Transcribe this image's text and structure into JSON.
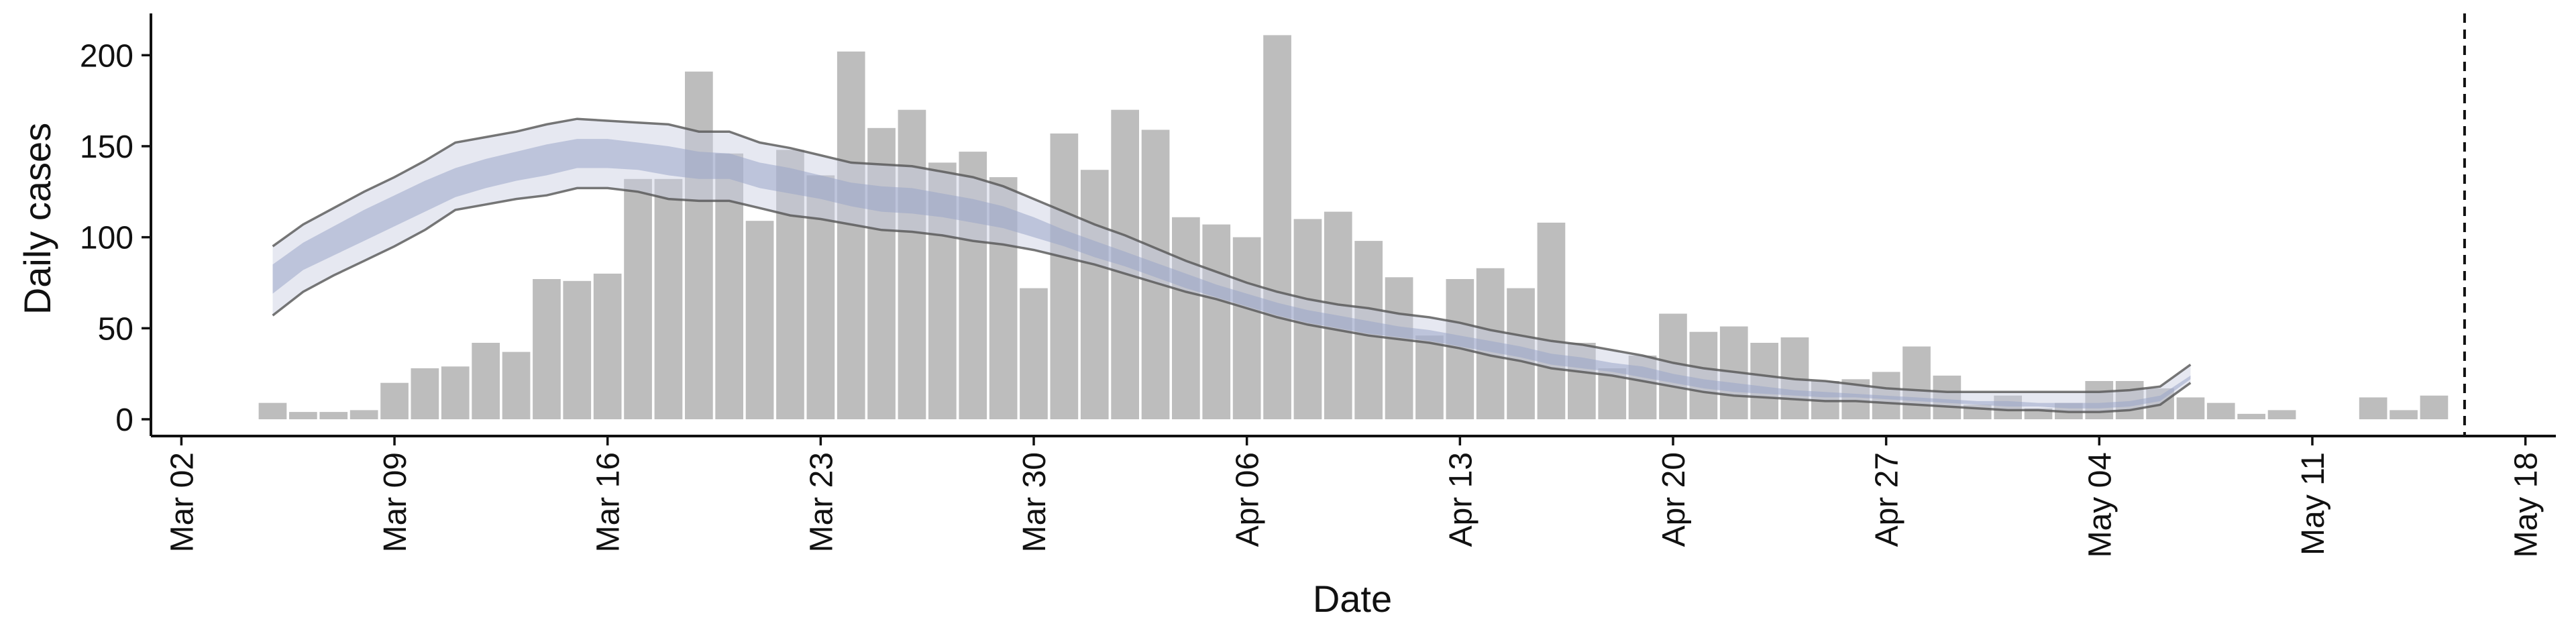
{
  "chart_data": {
    "type": "bar",
    "xlabel": "Date",
    "ylabel": "Daily cases",
    "ylim": [
      0,
      220
    ],
    "yticks": [
      0,
      50,
      100,
      150,
      200
    ],
    "xlim": [
      "2020-03-01",
      "2020-05-19"
    ],
    "xticks": [
      {
        "date": "2020-03-02",
        "label": "Mar 02"
      },
      {
        "date": "2020-03-09",
        "label": "Mar 09"
      },
      {
        "date": "2020-03-16",
        "label": "Mar 16"
      },
      {
        "date": "2020-03-23",
        "label": "Mar 23"
      },
      {
        "date": "2020-03-30",
        "label": "Mar 30"
      },
      {
        "date": "2020-04-06",
        "label": "Apr 06"
      },
      {
        "date": "2020-04-13",
        "label": "Apr 13"
      },
      {
        "date": "2020-04-20",
        "label": "Apr 20"
      },
      {
        "date": "2020-04-27",
        "label": "Apr 27"
      },
      {
        "date": "2020-05-04",
        "label": "May 04"
      },
      {
        "date": "2020-05-11",
        "label": "May 11"
      },
      {
        "date": "2020-05-18",
        "label": "May 18"
      }
    ],
    "vline_date": "2020-05-16",
    "bar_dates": [
      "2020-03-05",
      "2020-03-06",
      "2020-03-07",
      "2020-03-08",
      "2020-03-09",
      "2020-03-10",
      "2020-03-11",
      "2020-03-12",
      "2020-03-13",
      "2020-03-14",
      "2020-03-15",
      "2020-03-16",
      "2020-03-17",
      "2020-03-18",
      "2020-03-19",
      "2020-03-20",
      "2020-03-21",
      "2020-03-22",
      "2020-03-23",
      "2020-03-24",
      "2020-03-25",
      "2020-03-26",
      "2020-03-27",
      "2020-03-28",
      "2020-03-29",
      "2020-03-30",
      "2020-03-31",
      "2020-04-01",
      "2020-04-02",
      "2020-04-03",
      "2020-04-04",
      "2020-04-05",
      "2020-04-06",
      "2020-04-07",
      "2020-04-08",
      "2020-04-09",
      "2020-04-10",
      "2020-04-11",
      "2020-04-12",
      "2020-04-13",
      "2020-04-14",
      "2020-04-15",
      "2020-04-16",
      "2020-04-17",
      "2020-04-18",
      "2020-04-19",
      "2020-04-20",
      "2020-04-21",
      "2020-04-22",
      "2020-04-23",
      "2020-04-24",
      "2020-04-25",
      "2020-04-26",
      "2020-04-27",
      "2020-04-28",
      "2020-04-29",
      "2020-04-30",
      "2020-05-01",
      "2020-05-02",
      "2020-05-03",
      "2020-05-04",
      "2020-05-05",
      "2020-05-06",
      "2020-05-07",
      "2020-05-08",
      "2020-05-09",
      "2020-05-10",
      "2020-05-11",
      "2020-05-12",
      "2020-05-13",
      "2020-05-14",
      "2020-05-15"
    ],
    "bar_values": [
      9,
      4,
      4,
      5,
      20,
      28,
      29,
      42,
      37,
      77,
      76,
      80,
      132,
      132,
      191,
      146,
      109,
      148,
      134,
      202,
      160,
      170,
      141,
      147,
      133,
      72,
      157,
      137,
      170,
      159,
      111,
      107,
      100,
      211,
      110,
      114,
      98,
      78,
      46,
      77,
      83,
      72,
      108,
      42,
      28,
      35,
      58,
      48,
      51,
      42,
      45,
      21,
      22,
      26,
      40,
      24,
      8,
      13,
      6,
      9,
      21,
      21,
      17,
      12,
      9,
      3,
      5,
      0,
      0,
      12,
      5,
      13
    ],
    "band_dates": [
      "2020-03-05",
      "2020-03-06",
      "2020-03-07",
      "2020-03-08",
      "2020-03-09",
      "2020-03-10",
      "2020-03-11",
      "2020-03-12",
      "2020-03-13",
      "2020-03-14",
      "2020-03-15",
      "2020-03-16",
      "2020-03-17",
      "2020-03-18",
      "2020-03-19",
      "2020-03-20",
      "2020-03-21",
      "2020-03-22",
      "2020-03-23",
      "2020-03-24",
      "2020-03-25",
      "2020-03-26",
      "2020-03-27",
      "2020-03-28",
      "2020-03-29",
      "2020-03-30",
      "2020-03-31",
      "2020-04-01",
      "2020-04-02",
      "2020-04-03",
      "2020-04-04",
      "2020-04-05",
      "2020-04-06",
      "2020-04-07",
      "2020-04-08",
      "2020-04-09",
      "2020-04-10",
      "2020-04-11",
      "2020-04-12",
      "2020-04-13",
      "2020-04-14",
      "2020-04-15",
      "2020-04-16",
      "2020-04-17",
      "2020-04-18",
      "2020-04-19",
      "2020-04-20",
      "2020-04-21",
      "2020-04-22",
      "2020-04-23",
      "2020-04-24",
      "2020-04-25",
      "2020-04-26",
      "2020-04-27",
      "2020-04-28",
      "2020-04-29",
      "2020-04-30",
      "2020-05-01",
      "2020-05-02",
      "2020-05-03",
      "2020-05-04",
      "2020-05-05",
      "2020-05-06",
      "2020-05-07"
    ],
    "outer_upper": [
      95,
      107,
      116,
      125,
      133,
      142,
      152,
      155,
      158,
      162,
      165,
      164,
      163,
      162,
      158,
      158,
      152,
      149,
      145,
      141,
      140,
      139,
      136,
      133,
      128,
      121,
      114,
      107,
      101,
      94,
      87,
      81,
      75,
      70,
      66,
      63,
      61,
      58,
      56,
      53,
      49,
      46,
      43,
      41,
      38,
      35,
      31,
      28,
      26,
      24,
      22,
      21,
      19,
      17,
      16,
      15,
      15,
      15,
      15,
      15,
      15,
      16,
      18,
      30
    ],
    "outer_lower": [
      57,
      70,
      79,
      87,
      95,
      104,
      115,
      118,
      121,
      123,
      127,
      127,
      125,
      121,
      120,
      120,
      116,
      112,
      110,
      107,
      104,
      103,
      101,
      98,
      96,
      93,
      89,
      85,
      80,
      75,
      70,
      66,
      61,
      56,
      52,
      49,
      46,
      44,
      42,
      39,
      35,
      32,
      28,
      26,
      24,
      21,
      18,
      15,
      13,
      12,
      11,
      10,
      10,
      9,
      8,
      7,
      6,
      5,
      5,
      4,
      4,
      5,
      8,
      20
    ],
    "inner_upper": [
      85,
      97,
      106,
      115,
      123,
      131,
      138,
      143,
      147,
      151,
      154,
      154,
      152,
      150,
      147,
      146,
      141,
      138,
      134,
      130,
      128,
      127,
      124,
      121,
      117,
      111,
      104,
      98,
      92,
      86,
      80,
      74,
      69,
      64,
      60,
      57,
      54,
      51,
      49,
      46,
      43,
      40,
      36,
      34,
      31,
      29,
      25,
      22,
      20,
      18,
      16,
      15,
      14,
      13,
      12,
      11,
      10,
      10,
      9,
      9,
      9,
      10,
      13,
      24
    ],
    "inner_lower": [
      69,
      82,
      90,
      98,
      106,
      114,
      122,
      127,
      131,
      134,
      138,
      138,
      137,
      134,
      132,
      132,
      127,
      124,
      121,
      117,
      114,
      113,
      111,
      108,
      105,
      100,
      95,
      89,
      84,
      78,
      72,
      67,
      62,
      57,
      53,
      50,
      47,
      45,
      43,
      40,
      37,
      34,
      30,
      28,
      26,
      23,
      20,
      17,
      15,
      14,
      13,
      12,
      12,
      11,
      10,
      9,
      8,
      7,
      7,
      6,
      6,
      7,
      10,
      22
    ]
  }
}
